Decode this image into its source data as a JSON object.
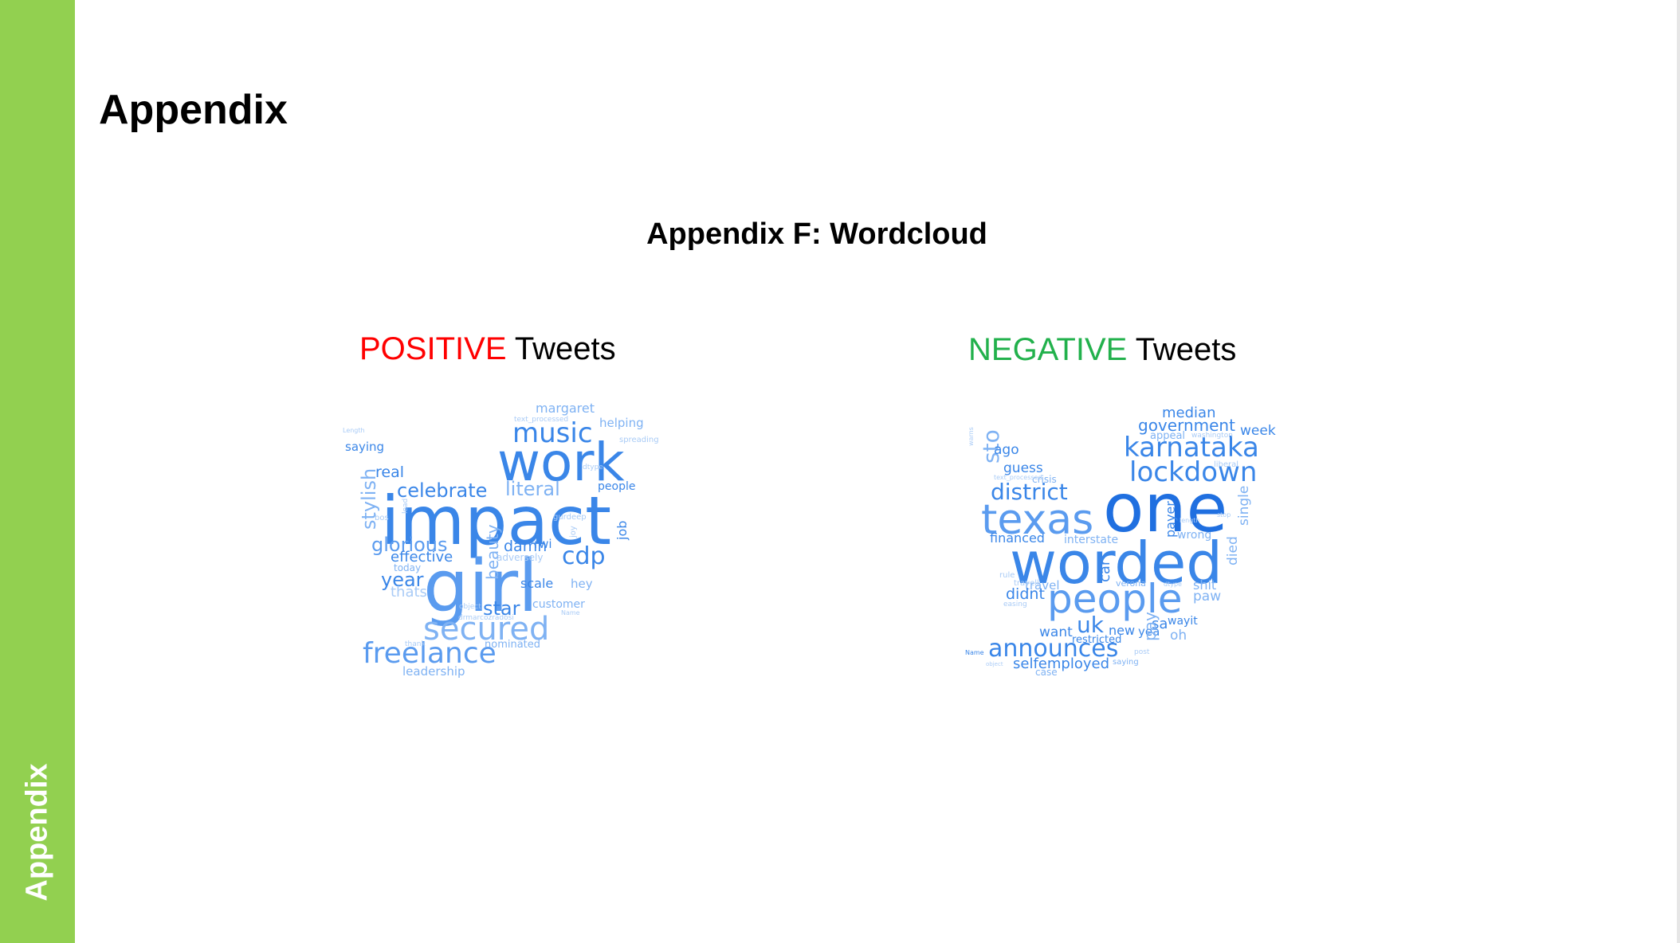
{
  "sidebar": {
    "label": "Appendix"
  },
  "page": {
    "title": "Appendix",
    "section_title": "Appendix F: Wordcloud"
  },
  "colors": {
    "sidebar": "#92d050",
    "positive": "#ff0000",
    "negative": "#22b14c",
    "words": "#3a86e8"
  },
  "positive": {
    "keyword": "POSITIVE",
    "suffix": " Tweets",
    "words": [
      "impact",
      "girl",
      "work",
      "music",
      "secured",
      "freelance",
      "cdp",
      "celebrate",
      "literal",
      "glorious",
      "star",
      "year",
      "margaret",
      "helping",
      "stylish",
      "real",
      "saying",
      "effective",
      "damn",
      "rwi",
      "beauty",
      "scale",
      "hey",
      "customer",
      "job",
      "people",
      "leadership",
      "nominated",
      "thats",
      "today",
      "adversely",
      "gurdeep",
      "spreading",
      "dtype",
      "bos",
      "text_processed",
      "Length",
      "object",
      "drmarcozradosi",
      "thank",
      "Name",
      "joy",
      "lead"
    ]
  },
  "negative": {
    "keyword": "NEGATIVE",
    "suffix": " Tweets",
    "words": [
      "one",
      "worded",
      "texas",
      "people",
      "karnataka",
      "lockdown",
      "district",
      "announces",
      "government",
      "median",
      "week",
      "appeal",
      "washington",
      "sto",
      "ago",
      "guess",
      "crisis",
      "liberal",
      "financed",
      "interstate",
      "payer",
      "wrong",
      "single",
      "died",
      "car",
      "travel",
      "verona",
      "dtype",
      "shit",
      "rule",
      "travell",
      "text_processed",
      "didnt",
      "easing",
      "paw",
      "uk",
      "want",
      "new",
      "yea",
      "sa",
      "wayit",
      "oh",
      "pay",
      "restricted",
      "selfemployed",
      "saying",
      "post",
      "case",
      "Name",
      "object",
      "warns",
      "stop",
      "length"
    ]
  }
}
